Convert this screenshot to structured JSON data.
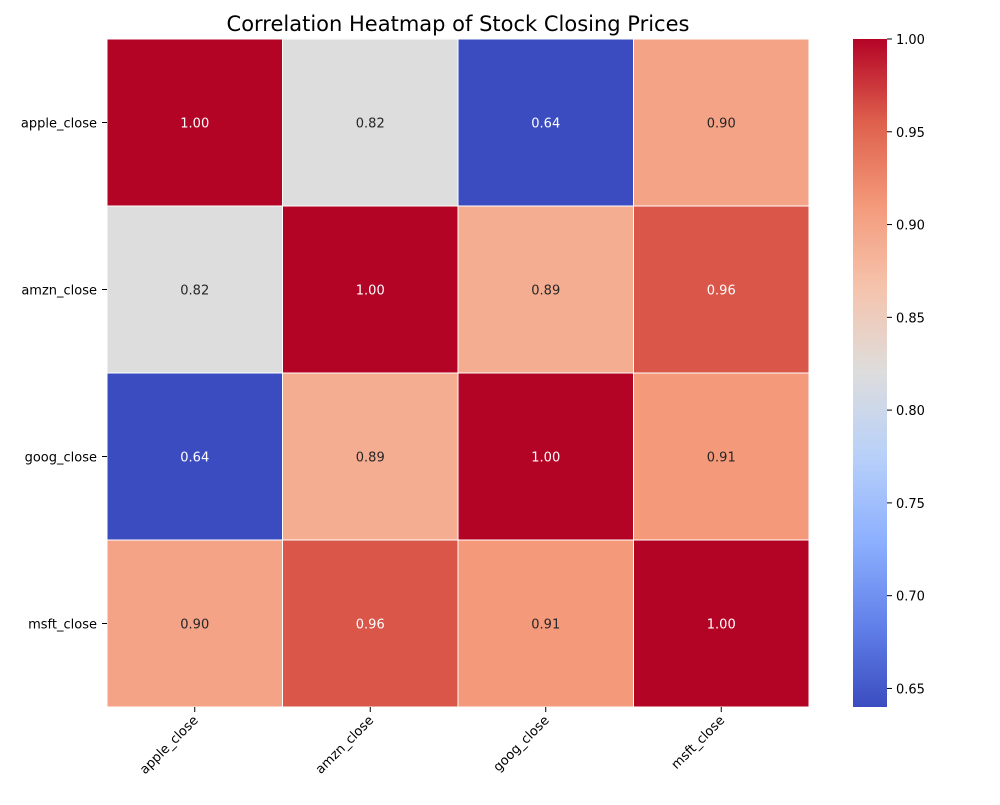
{
  "chart_data": {
    "type": "heatmap",
    "title": "Correlation Heatmap of Stock Closing Prices",
    "xlabel": "",
    "ylabel": "",
    "rows": [
      "apple_close",
      "amzn_close",
      "goog_close",
      "msft_close"
    ],
    "columns": [
      "apple_close",
      "amzn_close",
      "goog_close",
      "msft_close"
    ],
    "values": [
      [
        1.0,
        0.82,
        0.64,
        0.9
      ],
      [
        0.82,
        1.0,
        0.89,
        0.96
      ],
      [
        0.64,
        0.89,
        1.0,
        0.91
      ],
      [
        0.9,
        0.96,
        0.91,
        1.0
      ]
    ],
    "value_labels": [
      [
        "1.00",
        "0.82",
        "0.64",
        "0.90"
      ],
      [
        "0.82",
        "1.00",
        "0.89",
        "0.96"
      ],
      [
        "0.64",
        "0.89",
        "1.00",
        "0.91"
      ],
      [
        "0.90",
        "0.96",
        "0.91",
        "1.00"
      ]
    ],
    "colormap": "coolwarm",
    "color_range": [
      0.64,
      1.0
    ],
    "colorbar_ticks": [
      0.65,
      0.7,
      0.75,
      0.8,
      0.85,
      0.9,
      0.95,
      1.0
    ],
    "colorbar_tick_labels": [
      "0.65",
      "0.70",
      "0.75",
      "0.80",
      "0.85",
      "0.90",
      "0.95",
      "1.00"
    ],
    "colorbar_position": "right",
    "grid": false,
    "colors": {
      "cell_border": "#ffffff",
      "low": "#3b4cc0",
      "mid": "#dddddd",
      "high": "#b40426"
    }
  }
}
